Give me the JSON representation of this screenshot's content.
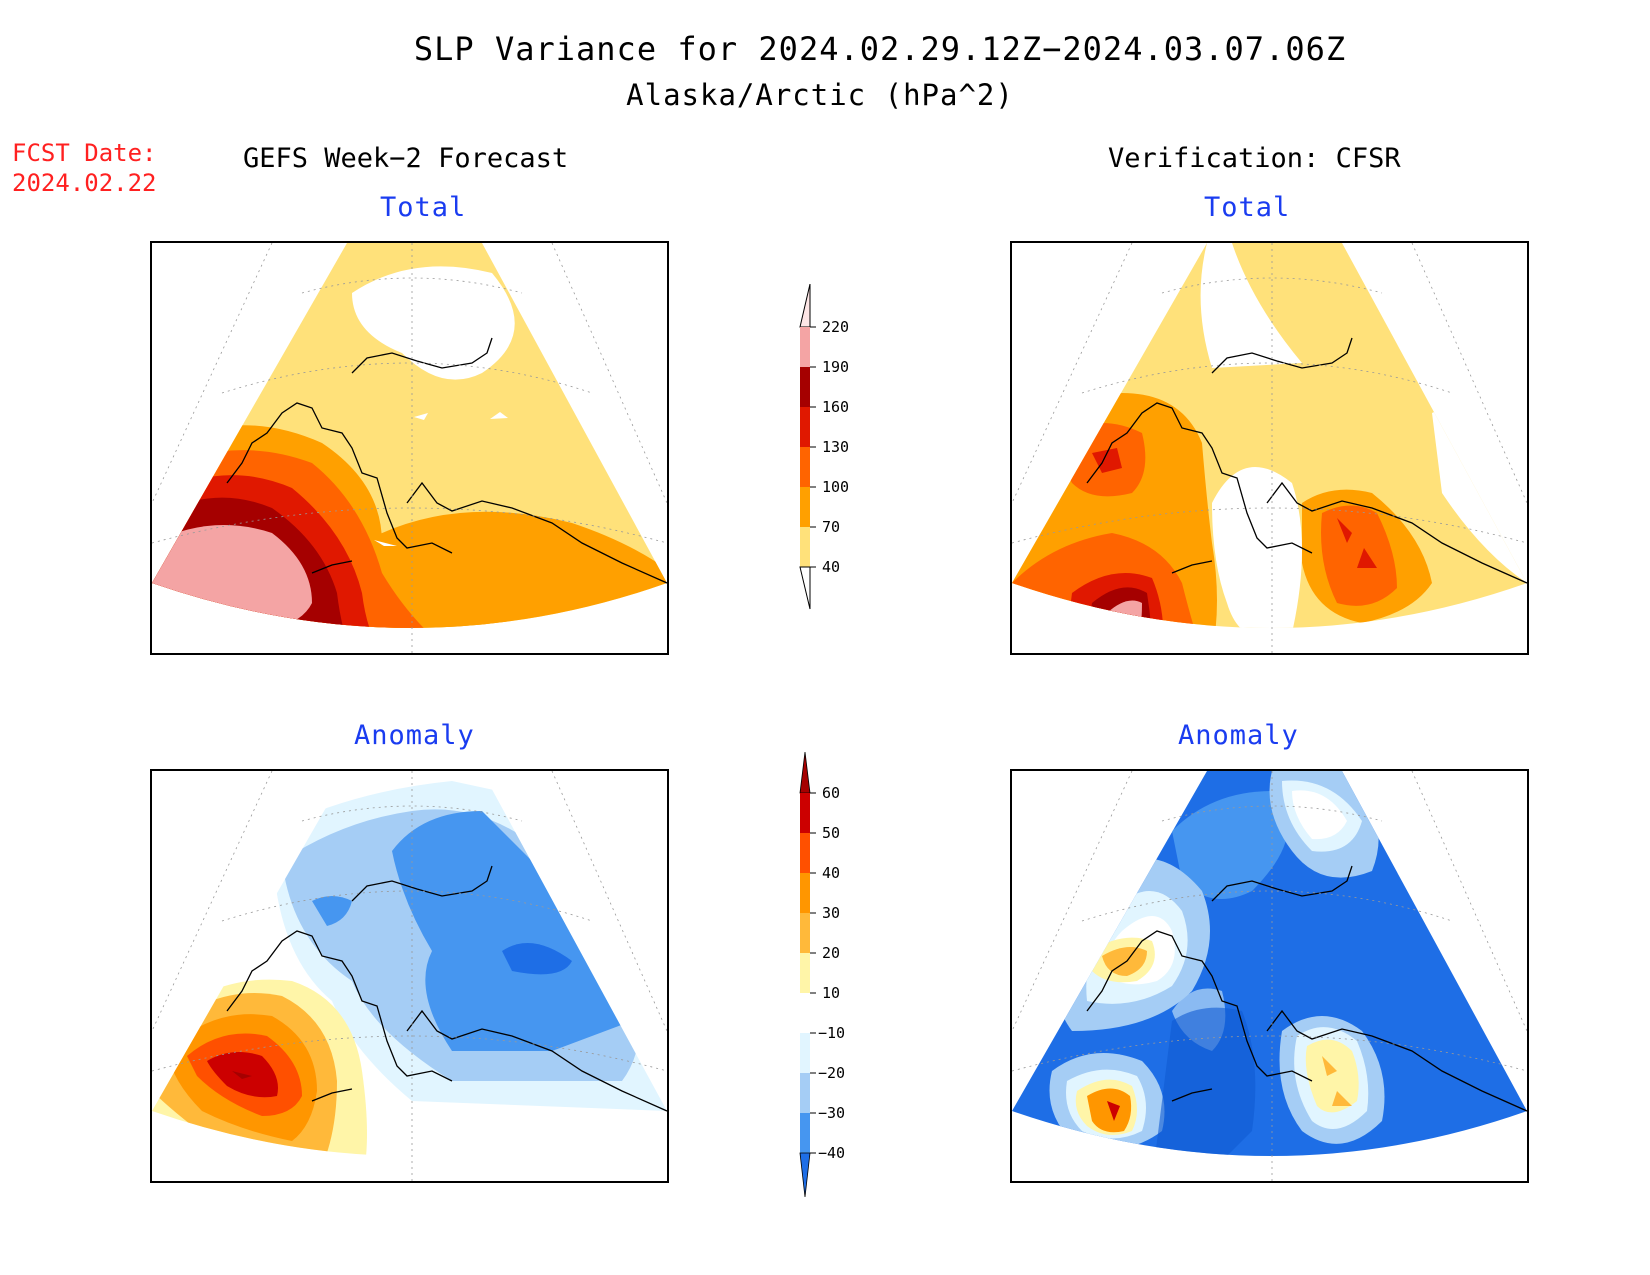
{
  "title": "SLP Variance for 2024.02.29.12Z−2024.03.07.06Z",
  "subtitle": "Alaska/Arctic (hPa^2)",
  "forecast_date": {
    "label": "FCST Date:",
    "value": "2024.02.22"
  },
  "columns": {
    "left": "GEFS Week−2 Forecast",
    "right": "Verification: CFSR"
  },
  "panels": {
    "gefs_total": "Total",
    "cfsr_total": "Total",
    "gefs_anomaly": "Anomaly",
    "cfsr_anomaly": "Anomaly"
  },
  "colorbar_total": {
    "labels": [
      "220",
      "190",
      "160",
      "130",
      "100",
      "70",
      "40"
    ],
    "colors": [
      "#f4a4a4",
      "#a50000",
      "#e01800",
      "#ff6400",
      "#ffa000",
      "#ffe17a"
    ]
  },
  "colorbar_anomaly": {
    "labels": [
      "60",
      "50",
      "40",
      "30",
      "20",
      "10",
      "−10",
      "−20",
      "−30",
      "−40"
    ],
    "colors": [
      "#cc0000",
      "#ff5000",
      "#ff9600",
      "#ffb93a",
      "#fff5a8",
      "#ffffff",
      "#e1f5ff",
      "#a5cdf5",
      "#4696f0",
      "#1e6ee6",
      "#0f5ad2"
    ]
  }
}
